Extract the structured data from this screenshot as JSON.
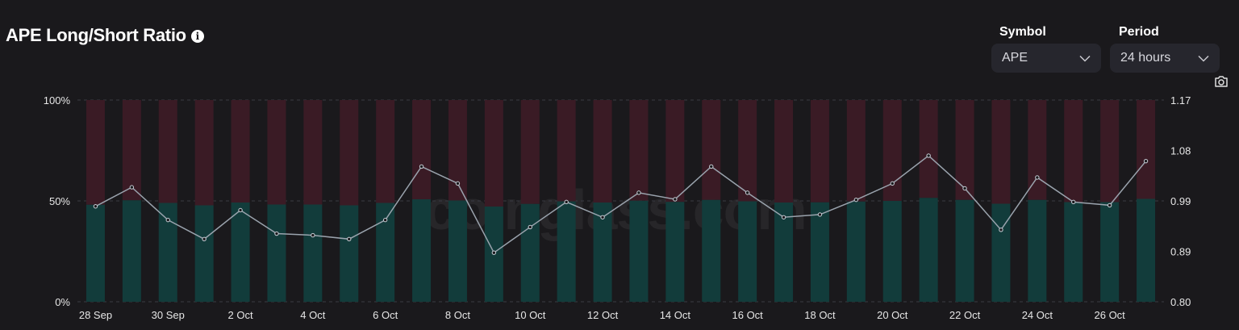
{
  "header": {
    "title": "APE Long/Short Ratio",
    "info_icon": "i"
  },
  "controls": {
    "symbol_label": "Symbol",
    "symbol_value": "APE",
    "period_label": "Period",
    "period_value": "24 hours"
  },
  "watermark": "coinglass.com",
  "colors": {
    "long": "#123c3b",
    "short": "#3a1b25",
    "ratio_line": "#9aa3ad",
    "background": "#1a191c"
  },
  "chart_data": {
    "type": "bar",
    "stacked": true,
    "x_tick_labels": [
      "28 Sep",
      "30 Sep",
      "2 Oct",
      "4 Oct",
      "6 Oct",
      "8 Oct",
      "10 Oct",
      "12 Oct",
      "14 Oct",
      "16 Oct",
      "18 Oct",
      "20 Oct",
      "22 Oct",
      "24 Oct",
      "26 Oct"
    ],
    "y_left_ticks": [
      "0%",
      "50%",
      "100%"
    ],
    "y_left_range": [
      0,
      100
    ],
    "y_right_ticks": [
      "0.80",
      "0.89",
      "0.99",
      "1.08",
      "1.17"
    ],
    "y_right_range": [
      0.8,
      1.17
    ],
    "grid": true,
    "long_pct": [
      48.1,
      50.3,
      49.0,
      47.8,
      49.2,
      48.2,
      48.2,
      47.8,
      49.0,
      50.8,
      50.2,
      47.2,
      48.5,
      49.8,
      49.2,
      50.1,
      49.5,
      50.5,
      49.8,
      49.2,
      49.3,
      49.7,
      50.0,
      51.5,
      50.5,
      48.6,
      50.5,
      49.4,
      49.4,
      51.0
    ],
    "ratio": [
      0.975,
      1.01,
      0.95,
      0.915,
      0.968,
      0.925,
      0.922,
      0.915,
      0.95,
      1.048,
      1.017,
      0.89,
      0.937,
      0.983,
      0.955,
      1.0,
      0.988,
      1.048,
      1.0,
      0.955,
      0.96,
      0.987,
      1.017,
      1.068,
      1.008,
      0.932,
      1.028,
      0.983,
      0.977,
      1.058
    ],
    "series": [
      {
        "name": "",
        "key": "long_pct",
        "axis": "left",
        "kind": "bar"
      },
      {
        "name": "",
        "key": "short_pct",
        "axis": "left",
        "kind": "bar"
      },
      {
        "name": "",
        "key": "ratio",
        "axis": "right",
        "kind": "line"
      }
    ]
  }
}
